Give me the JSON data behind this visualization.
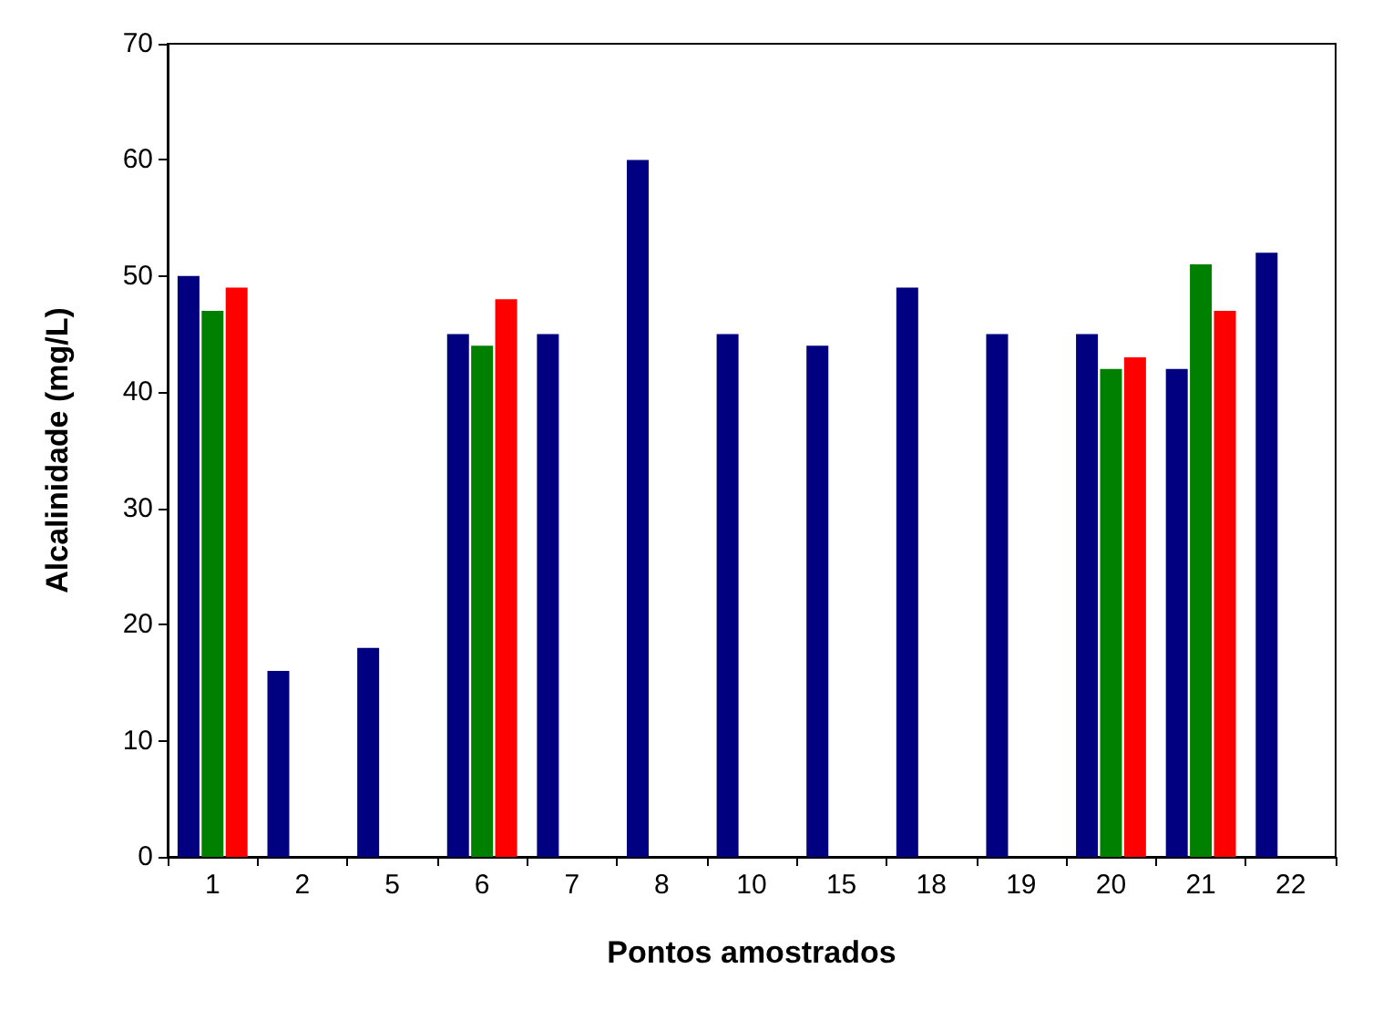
{
  "chart_data": {
    "type": "bar",
    "xlabel": "Pontos amostrados",
    "ylabel": "Alcalinidade (mg/L)",
    "categories": [
      "1",
      "2",
      "5",
      "6",
      "7",
      "8",
      "10",
      "15",
      "18",
      "19",
      "20",
      "21",
      "22"
    ],
    "series": [
      {
        "color": "#000080",
        "values": [
          50,
          16,
          18,
          45,
          45,
          60,
          45,
          44,
          49,
          45,
          45,
          42,
          52
        ]
      },
      {
        "color": "#008000",
        "values": [
          47,
          null,
          null,
          44,
          null,
          null,
          null,
          null,
          null,
          null,
          42,
          51,
          null
        ]
      },
      {
        "color": "#ff0000",
        "values": [
          49,
          null,
          null,
          48,
          null,
          null,
          null,
          null,
          null,
          null,
          43,
          47,
          null
        ]
      }
    ],
    "ylim": [
      0,
      70
    ],
    "yticks": [
      0,
      10,
      20,
      30,
      40,
      50,
      60,
      70
    ],
    "grid": false
  }
}
